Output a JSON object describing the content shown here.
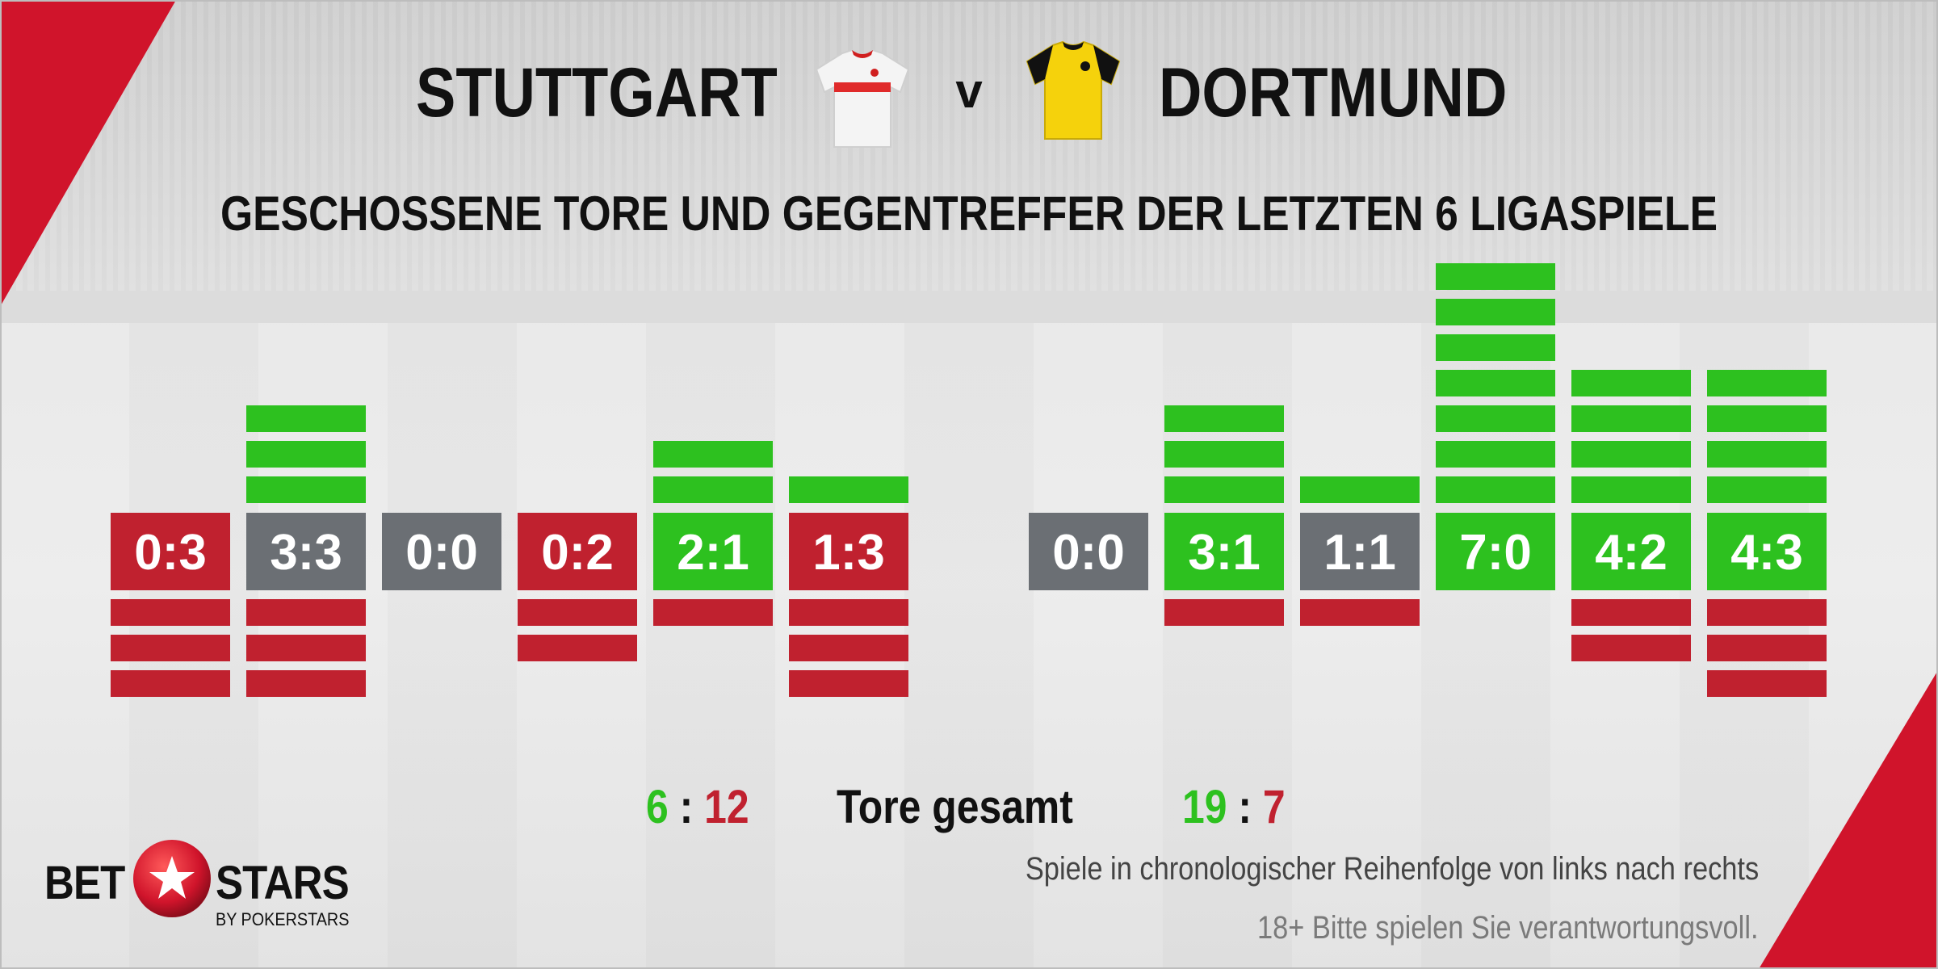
{
  "header": {
    "home_team": "STUTTGART",
    "versus": "v",
    "away_team": "DORTMUND",
    "home_shirt_icon": "white-red-stripe-jersey-icon",
    "away_shirt_icon": "yellow-black-jersey-icon"
  },
  "subtitle": "GESCHOSSENE TORE UND GEGENTREFFER DER LETZTEN 6 LIGASPIELE",
  "colors": {
    "win": "#2dc11f",
    "loss": "#c0212f",
    "draw": "#6b6f74",
    "accent_red": "#d0142b"
  },
  "chart_data": [
    {
      "type": "bar",
      "team": "STUTTGART",
      "matches": [
        {
          "score": "0:3",
          "scored": 0,
          "conceded": 3,
          "result": "loss"
        },
        {
          "score": "3:3",
          "scored": 3,
          "conceded": 3,
          "result": "draw"
        },
        {
          "score": "0:0",
          "scored": 0,
          "conceded": 0,
          "result": "draw"
        },
        {
          "score": "0:2",
          "scored": 0,
          "conceded": 2,
          "result": "loss"
        },
        {
          "score": "2:1",
          "scored": 2,
          "conceded": 1,
          "result": "win"
        },
        {
          "score": "1:3",
          "scored": 1,
          "conceded": 3,
          "result": "loss"
        }
      ]
    },
    {
      "type": "bar",
      "team": "DORTMUND",
      "matches": [
        {
          "score": "0:0",
          "scored": 0,
          "conceded": 0,
          "result": "draw"
        },
        {
          "score": "3:1",
          "scored": 3,
          "conceded": 1,
          "result": "win"
        },
        {
          "score": "1:1",
          "scored": 1,
          "conceded": 1,
          "result": "draw"
        },
        {
          "score": "7:0",
          "scored": 7,
          "conceded": 0,
          "result": "win"
        },
        {
          "score": "4:2",
          "scored": 4,
          "conceded": 2,
          "result": "win"
        },
        {
          "score": "4:3",
          "scored": 4,
          "conceded": 3,
          "result": "win"
        }
      ]
    }
  ],
  "totals": {
    "label": "Tore gesamt",
    "home_for": "6",
    "home_against": "12",
    "away_for": "19",
    "away_against": "7",
    "separator": ":"
  },
  "footer": {
    "note": "Spiele in chronologischer Reihenfolge von links nach rechts",
    "disclaimer": "18+ Bitte spielen Sie verantwortungsvoll.",
    "logo_left": "BET",
    "logo_right": "STARS",
    "logo_sub": "BY POKERSTARS",
    "logo_icon": "red-ball-star-icon"
  }
}
